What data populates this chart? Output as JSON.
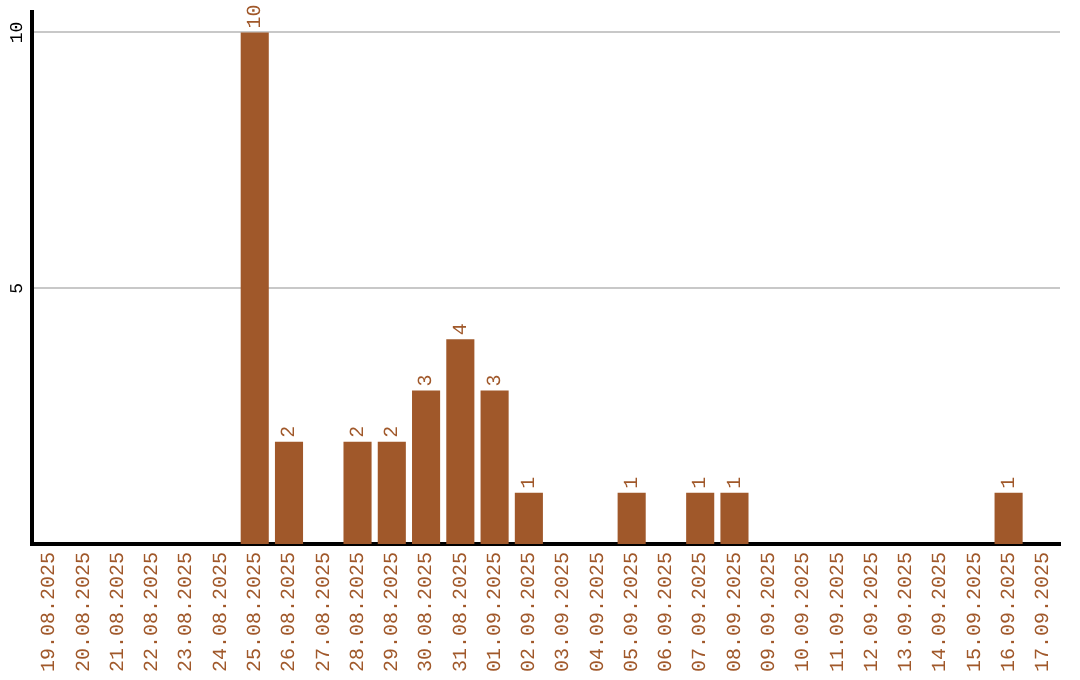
{
  "chart_data": {
    "type": "bar",
    "categories": [
      "19.08.2025",
      "20.08.2025",
      "21.08.2025",
      "22.08.2025",
      "23.08.2025",
      "24.08.2025",
      "25.08.2025",
      "26.08.2025",
      "27.08.2025",
      "28.08.2025",
      "29.08.2025",
      "30.08.2025",
      "31.08.2025",
      "01.09.2025",
      "02.09.2025",
      "03.09.2025",
      "04.09.2025",
      "05.09.2025",
      "06.09.2025",
      "07.09.2025",
      "08.09.2025",
      "09.09.2025",
      "10.09.2025",
      "11.09.2025",
      "12.09.2025",
      "13.09.2025",
      "14.09.2025",
      "15.09.2025",
      "16.09.2025",
      "17.09.2025"
    ],
    "values": [
      0,
      0,
      0,
      0,
      0,
      0,
      10,
      2,
      0,
      2,
      2,
      3,
      4,
      3,
      1,
      0,
      0,
      1,
      0,
      1,
      1,
      0,
      0,
      0,
      0,
      0,
      0,
      0,
      1,
      0
    ],
    "value_labels": [
      null,
      null,
      null,
      null,
      null,
      null,
      "10",
      "2",
      null,
      "2",
      "2",
      "3",
      "4",
      "3",
      "1",
      null,
      null,
      "1",
      null,
      "1",
      "1",
      null,
      null,
      null,
      null,
      null,
      null,
      null,
      "1",
      null
    ],
    "color": "#a0582a",
    "ylim": [
      0,
      10.4
    ],
    "yticks": [
      5,
      10
    ],
    "grid": "y"
  }
}
